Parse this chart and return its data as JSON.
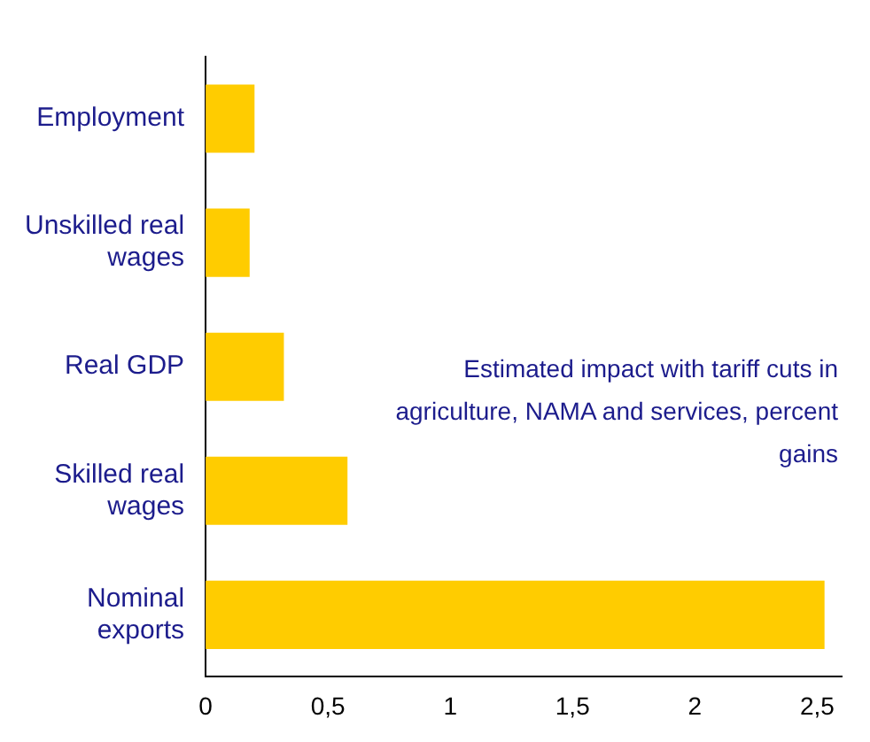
{
  "chart_data": {
    "type": "bar",
    "orientation": "horizontal",
    "categories": [
      "Employment",
      "Unskilled real wages",
      "Real GDP",
      "Skilled real wages",
      "Nominal exports"
    ],
    "values": [
      0.2,
      0.18,
      0.32,
      0.58,
      2.53
    ],
    "color": "#ffcc00",
    "xlim": [
      0,
      2.6
    ],
    "xticks": [
      0,
      {
        "value": 0.5,
        "label": "0,5"
      },
      1,
      {
        "value": 1.5,
        "label": "1,5"
      },
      2,
      {
        "value": 2.5,
        "label": "2,5"
      }
    ],
    "grid": false,
    "annotations": [
      "Estimated impact with tariff cuts in agriculture, NAMA and services, percent gains"
    ]
  }
}
